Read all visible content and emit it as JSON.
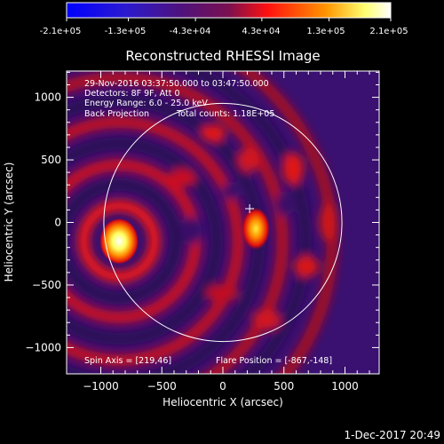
{
  "colorbar": {
    "tick_labels": [
      "-2.1e+05",
      "-1.3e+05",
      "-4.3e+04",
      "4.3e+04",
      "1.3e+05",
      "2.1e+05"
    ],
    "range": [
      -210000,
      210000
    ],
    "colormap": [
      "#0000ff",
      "#3a1ab0",
      "#55107a",
      "#7a1060",
      "#ff2020",
      "#ff9a00",
      "#ffff80",
      "#ffffff"
    ]
  },
  "chart_data": {
    "type": "heatmap",
    "title": "Reconstructed RHESSI Image",
    "xlabel": "Heliocentric X (arcsec)",
    "ylabel": "Heliocentric Y (arcsec)",
    "xlim": [
      -1280,
      1280
    ],
    "ylim": [
      -1210,
      1210
    ],
    "x_ticks": [
      -1000,
      -500,
      0,
      500,
      1000
    ],
    "y_ticks": [
      -1000,
      -500,
      0,
      500,
      1000
    ],
    "x_tick_labels": [
      "−1000",
      "−500",
      "0",
      "500",
      "1000"
    ],
    "y_tick_labels": [
      "−1000",
      "−500",
      "0",
      "500",
      "1000"
    ],
    "solar_limb_radius": 975,
    "sources": [
      {
        "x": -850,
        "y": -150,
        "peak": 210000
      },
      {
        "x": 270,
        "y": -50,
        "peak": 130000
      }
    ],
    "crosshair": {
      "x": 219,
      "y": 110
    },
    "annotations": [
      "29-Nov-2016 03:37:50.000 to 03:47:50.000",
      "Detectors: 8F 9F, Att 0",
      "Energy Range: 6.0 - 25.0 keV",
      "Back Projection",
      "Total counts: 1.18E+05"
    ],
    "spin_axis": "Spin Axis = [219,46]",
    "flare_position": "Flare Position = [-867,-148]"
  },
  "footer": {
    "date_text": "1-Dec-2017 20:49"
  }
}
